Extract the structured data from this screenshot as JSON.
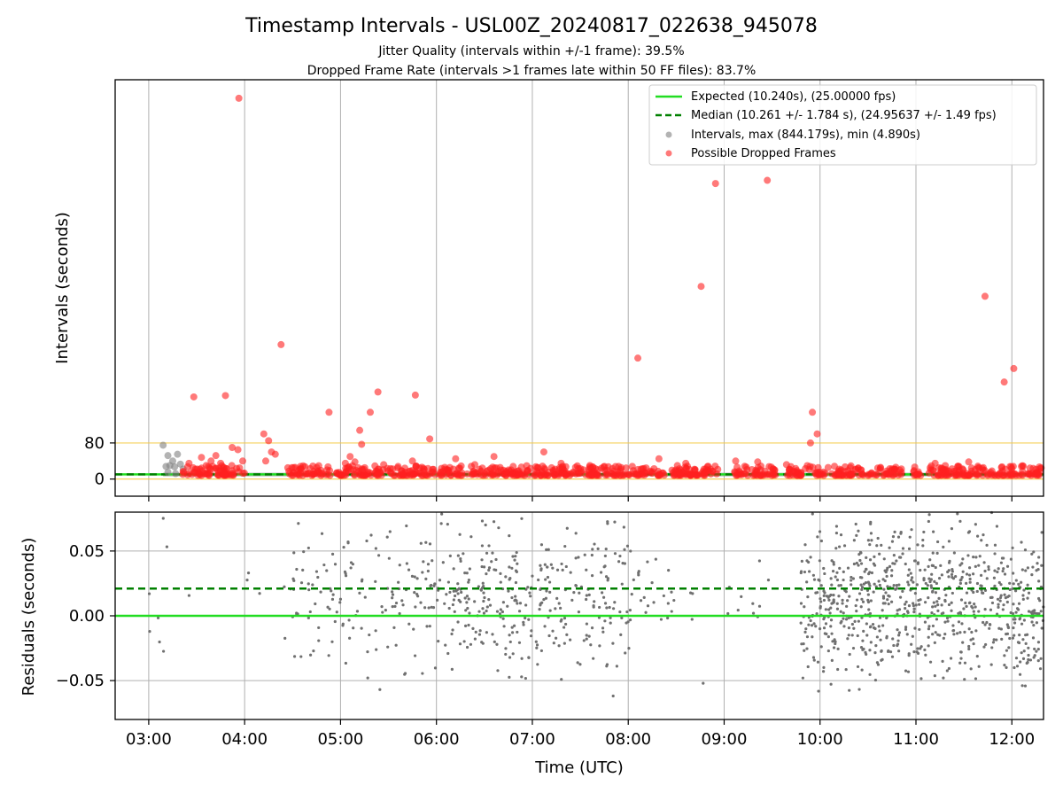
{
  "chart_data": {
    "title": "Timestamp Intervals - USL00Z_20240817_022638_945078",
    "subtitle_lines": [
      "Jitter Quality (intervals within +/-1 frame): 39.5%",
      "Dropped Frame Rate (intervals >1 frames late within 50 FF files): 83.7%"
    ],
    "xlabel": "Time (UTC)",
    "x_tick_labels": [
      "03:00",
      "04:00",
      "05:00",
      "06:00",
      "07:00",
      "08:00",
      "09:00",
      "10:00",
      "11:00",
      "12:00"
    ],
    "x_tick_hours": [
      3,
      4,
      5,
      6,
      7,
      8,
      9,
      10,
      11,
      12
    ],
    "x_range_hours": [
      2.65,
      12.33
    ],
    "grid": "vertical",
    "panels": [
      {
        "type": "scatter",
        "ylabel": "Intervals (seconds)",
        "y_tick_labels": [
          "0",
          "80"
        ],
        "y_ticks": [
          0,
          80
        ],
        "ylim": [
          -38,
          885
        ],
        "legend_position": "upper-right",
        "reference_lines": [
          {
            "label": "Expected (10.240s), (25.00000 fps)",
            "value": 10.24,
            "color": "#22dd22",
            "style": "solid"
          },
          {
            "label": "Median (10.261 +/- 1.784 s), (24.95637 +/- 1.49 fps)",
            "value": 10.261,
            "color": "#008000",
            "style": "dashed"
          }
        ],
        "threshold_lines": [
          {
            "value": 0,
            "color": "#f5c842"
          },
          {
            "value": 80,
            "color": "#f5c842"
          }
        ],
        "series": [
          {
            "name": "Intervals, max (844.179s), min (4.890s)",
            "color": "#808080",
            "marker": "circle",
            "points": [
              [
                3.15,
                75
              ],
              [
                3.18,
                28
              ],
              [
                3.2,
                52
              ],
              [
                3.22,
                30
              ],
              [
                3.25,
                40
              ],
              [
                3.27,
                27
              ],
              [
                3.3,
                55
              ],
              [
                3.33,
                33
              ],
              [
                3.36,
                22
              ],
              [
                3.2,
                15
              ],
              [
                3.28,
                12
              ]
            ]
          },
          {
            "name": "Possible Dropped Frames",
            "color": "#ff2020",
            "marker": "circle",
            "points": [
              [
                3.94,
                844
              ],
              [
                3.47,
                182
              ],
              [
                3.8,
                185
              ],
              [
                4.38,
                298
              ],
              [
                4.2,
                100
              ],
              [
                4.25,
                85
              ],
              [
                4.28,
                60
              ],
              [
                4.88,
                148
              ],
              [
                5.2,
                108
              ],
              [
                5.31,
                148
              ],
              [
                5.39,
                193
              ],
              [
                5.22,
                77
              ],
              [
                5.78,
                186
              ],
              [
                5.93,
                89
              ],
              [
                8.1,
                268
              ],
              [
                8.76,
                427
              ],
              [
                8.91,
                655
              ],
              [
                9.45,
                662
              ],
              [
                9.92,
                148
              ],
              [
                9.97,
                100
              ],
              [
                9.9,
                80
              ],
              [
                11.72,
                405
              ],
              [
                11.92,
                215
              ],
              [
                12.02,
                245
              ],
              [
                3.42,
                35
              ],
              [
                3.55,
                48
              ],
              [
                3.65,
                40
              ],
              [
                3.7,
                52
              ],
              [
                3.87,
                70
              ],
              [
                3.93,
                65
              ],
              [
                3.98,
                40
              ],
              [
                3.6,
                30
              ],
              [
                3.75,
                35
              ],
              [
                4.22,
                40
              ],
              [
                4.32,
                55
              ],
              [
                4.45,
                25
              ],
              [
                5.05,
                35
              ],
              [
                5.1,
                50
              ],
              [
                5.15,
                38
              ],
              [
                5.45,
                32
              ],
              [
                5.6,
                28
              ],
              [
                5.75,
                40
              ],
              [
                6.2,
                45
              ],
              [
                6.4,
                32
              ],
              [
                6.6,
                50
              ],
              [
                6.8,
                28
              ],
              [
                7.12,
                60
              ],
              [
                7.3,
                35
              ],
              [
                7.6,
                30
              ],
              [
                7.9,
                28
              ],
              [
                8.32,
                45
              ],
              [
                8.6,
                35
              ],
              [
                9.12,
                40
              ],
              [
                9.35,
                38
              ],
              [
                9.65,
                32
              ],
              [
                10.2,
                22
              ],
              [
                11.2,
                35
              ],
              [
                11.55,
                38
              ],
              [
                12.1,
                28
              ]
            ],
            "dense_band_y": [
              8,
              30
            ],
            "dense_band_segments": [
              [
                3.35,
                4.0
              ],
              [
                4.45,
                4.9
              ],
              [
                4.95,
                8.95
              ],
              [
                9.1,
                9.55
              ],
              [
                9.65,
                10.45
              ],
              [
                10.5,
                10.85
              ],
              [
                10.95,
                11.05
              ],
              [
                11.1,
                12.33
              ]
            ]
          }
        ]
      },
      {
        "type": "scatter",
        "ylabel": "Residuals (seconds)",
        "y_tick_labels": [
          "0.05",
          "0.00",
          "−0.05"
        ],
        "y_ticks": [
          0.05,
          0,
          -0.05
        ],
        "ylim": [
          -0.08,
          0.08
        ],
        "grid": "both",
        "reference_lines": [
          {
            "value": 0.0,
            "color": "#22dd22",
            "style": "solid"
          },
          {
            "value": 0.021,
            "color": "#008000",
            "style": "dashed"
          }
        ],
        "series": [
          {
            "color": "#707070",
            "marker": "dot",
            "density_by_hour": [
              [
                3.0,
                8
              ],
              [
                3.5,
                6
              ],
              [
                4.5,
                45
              ],
              [
                5.0,
                40
              ],
              [
                5.5,
                55
              ],
              [
                6.0,
                85
              ],
              [
                6.5,
                90
              ],
              [
                7.0,
                70
              ],
              [
                7.5,
                70
              ],
              [
                8.0,
                25
              ],
              [
                8.5,
                4
              ],
              [
                9.0,
                10
              ],
              [
                9.5,
                0
              ],
              [
                9.8,
                50
              ],
              [
                10.0,
                160
              ],
              [
                10.5,
                170
              ],
              [
                11.0,
                150
              ],
              [
                11.5,
                140
              ],
              [
                12.0,
                110
              ]
            ]
          }
        ]
      }
    ]
  }
}
